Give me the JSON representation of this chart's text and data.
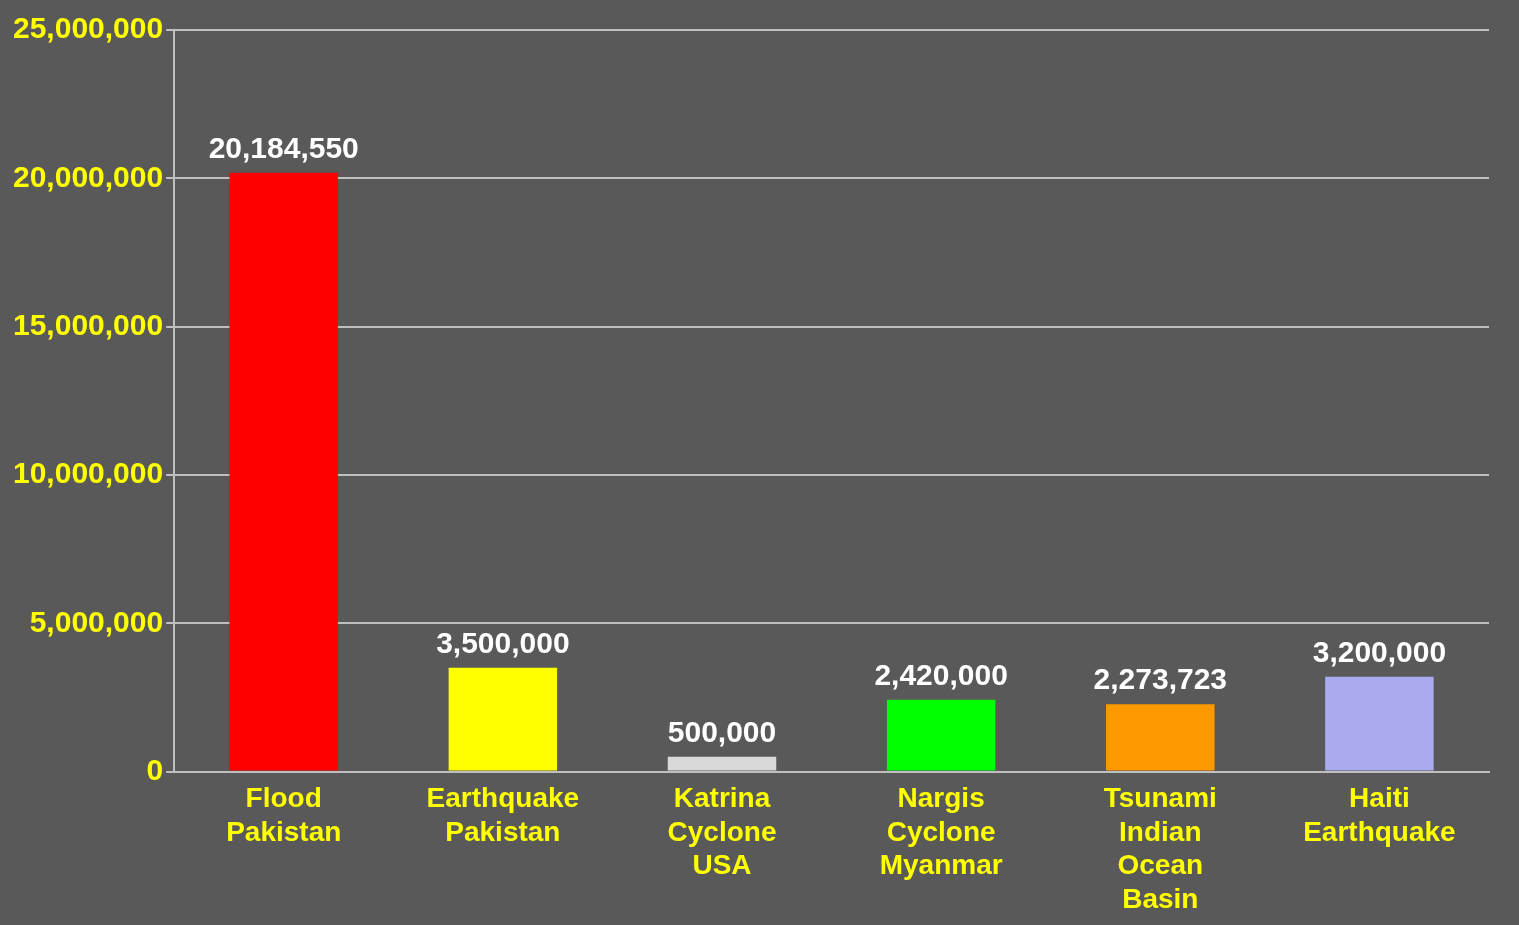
{
  "chart_data": {
    "type": "bar",
    "categories": [
      "Flood Pakistan",
      "Earthquake Pakistan",
      "Katrina Cyclone USA",
      "Nargis Cyclone Myanmar",
      "Tsunami Indian Ocean Basin",
      "Haiti Earthquake"
    ],
    "values": [
      20184550,
      3500000,
      500000,
      2420000,
      2273723,
      3200000
    ],
    "colors": [
      "#ff0000",
      "#ffff00",
      "#d9d9d9",
      "#00ff00",
      "#ff9900",
      "#aaaaee"
    ],
    "ylim": [
      0,
      25000000
    ],
    "yticks": [
      {
        "value": 0,
        "label": "0"
      },
      {
        "value": 5000000,
        "label": "5,000,000"
      },
      {
        "value": 10000000,
        "label": "10,000,000"
      },
      {
        "value": 15000000,
        "label": "15,000,000"
      },
      {
        "value": 20000000,
        "label": "20,000,000"
      },
      {
        "value": 25000000,
        "label": "25,000,000"
      }
    ],
    "value_labels": [
      "20,184,550",
      "3,500,000",
      "500,000",
      "2,420,000",
      "2,273,723",
      "3,200,000"
    ],
    "grid": "y",
    "legend": false
  }
}
